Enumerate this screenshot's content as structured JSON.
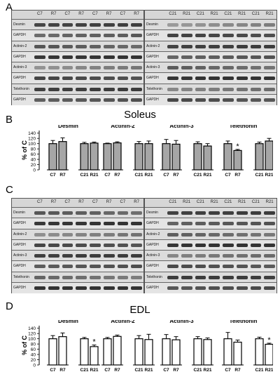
{
  "panels": {
    "a": "A",
    "b": "B",
    "c": "C",
    "d": "D"
  },
  "blots": {
    "left_lanes": [
      "C7",
      "R7",
      "C7",
      "R7",
      "C7",
      "R7",
      "C7",
      "R7"
    ],
    "right_lanes": [
      "C21",
      "R21",
      "C21",
      "R21",
      "C21",
      "R21",
      "C21",
      "R21"
    ],
    "rows": [
      "Desmin",
      "GAPDH",
      "Actinin-2",
      "GAPDH",
      "Actinin-3",
      "GAPDH",
      "Telethonin",
      "GAPDH"
    ]
  },
  "chart_data": [
    {
      "type": "bar",
      "title": "Soleus",
      "ylabel": "% of C",
      "ylim": [
        0,
        150
      ],
      "yticks": [
        0,
        20,
        40,
        60,
        80,
        100,
        120,
        140
      ],
      "bar_color": "#a6a6a6",
      "groups": [
        {
          "name": "Desmin",
          "categories": [
            "C7",
            "R7",
            "C21",
            "R21"
          ],
          "values": [
            100,
            108,
            100,
            102
          ],
          "errors": [
            12,
            14,
            5,
            4
          ],
          "sig": []
        },
        {
          "name": "Actinin-2",
          "categories": [
            "C7",
            "R7",
            "C21",
            "R21"
          ],
          "values": [
            100,
            103,
            100,
            100
          ],
          "errors": [
            2,
            4,
            8,
            10
          ],
          "sig": []
        },
        {
          "name": "Actinin-3",
          "categories": [
            "C7",
            "R7",
            "C21",
            "R21"
          ],
          "values": [
            100,
            98,
            100,
            91
          ],
          "errors": [
            16,
            14,
            7,
            9
          ],
          "sig": []
        },
        {
          "name": "Telethonin",
          "categories": [
            "C7",
            "R7",
            "C21",
            "R21"
          ],
          "values": [
            100,
            74,
            100,
            110
          ],
          "errors": [
            10,
            4,
            6,
            10
          ],
          "sig": [
            "R7"
          ]
        }
      ]
    },
    {
      "type": "bar",
      "title": "EDL",
      "ylabel": "% of C",
      "ylim": [
        0,
        150
      ],
      "yticks": [
        0,
        20,
        40,
        60,
        80,
        100,
        120,
        140
      ],
      "bar_color": "#ffffff",
      "groups": [
        {
          "name": "Desmin",
          "categories": [
            "C7",
            "R7",
            "C21",
            "R21"
          ],
          "values": [
            100,
            108,
            100,
            70
          ],
          "errors": [
            12,
            14,
            5,
            6
          ],
          "sig": [
            "R21"
          ]
        },
        {
          "name": "Actinin-2",
          "categories": [
            "C7",
            "R7",
            "C21",
            "R21"
          ],
          "values": [
            100,
            109,
            100,
            97
          ],
          "errors": [
            5,
            5,
            12,
            20
          ],
          "sig": []
        },
        {
          "name": "Actinin-3",
          "categories": [
            "C7",
            "R7",
            "C21",
            "R21"
          ],
          "values": [
            100,
            96,
            100,
            97
          ],
          "errors": [
            16,
            12,
            8,
            6
          ],
          "sig": []
        },
        {
          "name": "Telethonin",
          "categories": [
            "C7",
            "R7",
            "C21",
            "R21"
          ],
          "values": [
            100,
            87,
            100,
            79
          ],
          "errors": [
            24,
            8,
            6,
            4
          ],
          "sig": [
            "R21"
          ]
        }
      ]
    }
  ]
}
